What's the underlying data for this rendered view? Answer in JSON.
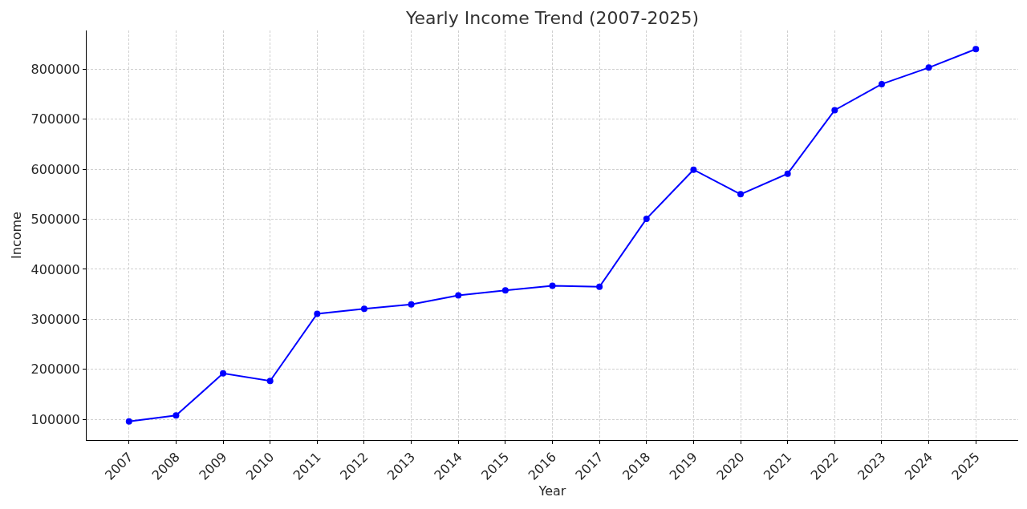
{
  "chart_data": {
    "type": "line",
    "title": "Yearly Income Trend (2007-2025)",
    "xlabel": "Year",
    "ylabel": "Income",
    "x": [
      2007,
      2008,
      2009,
      2010,
      2011,
      2012,
      2013,
      2014,
      2015,
      2016,
      2017,
      2018,
      2019,
      2020,
      2021,
      2022,
      2023,
      2024,
      2025
    ],
    "series": [
      {
        "color": "#0000ff",
        "values": [
          96000,
          108000,
          192000,
          177000,
          311000,
          321000,
          330000,
          348000,
          358000,
          367000,
          365000,
          501000,
          599000,
          550000,
          591000,
          718000,
          770000,
          803000,
          840000
        ]
      }
    ],
    "xlim": [
      2006.1,
      2025.9
    ],
    "xticks": [
      2007,
      2008,
      2009,
      2010,
      2011,
      2012,
      2013,
      2014,
      2015,
      2016,
      2017,
      2018,
      2019,
      2020,
      2021,
      2022,
      2023,
      2024,
      2025
    ],
    "ylim": [
      58800,
      877200
    ],
    "yticks": [
      100000,
      200000,
      300000,
      400000,
      500000,
      600000,
      700000,
      800000
    ],
    "grid": true,
    "marker": "circle",
    "line_style": "solid"
  }
}
